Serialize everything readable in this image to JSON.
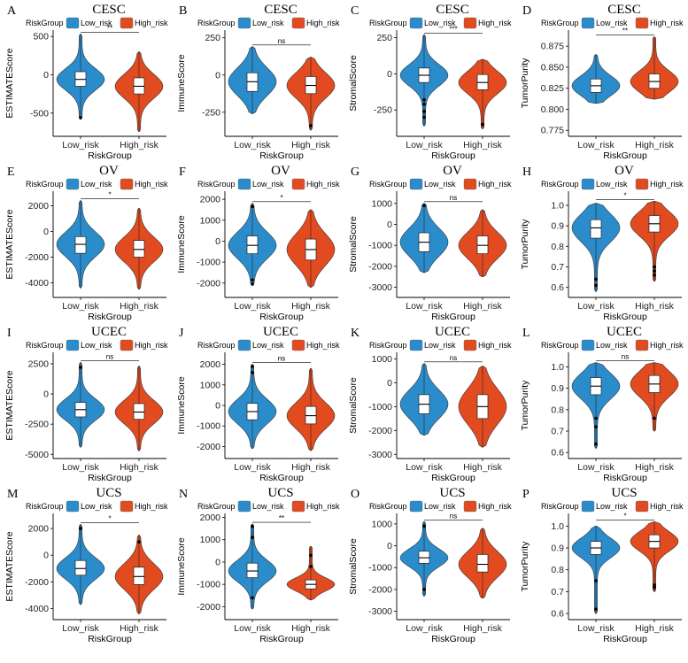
{
  "figure": {
    "legend_title": "RiskGroup",
    "group_labels": [
      "Low_risk",
      "High_risk"
    ],
    "x_axis_label": "RiskGroup"
  },
  "colors": {
    "low": "#2b8ccc",
    "high": "#e24b1f",
    "axis": "#000000"
  },
  "chart_data": [
    {
      "letter": "A",
      "title": "CESC",
      "type": "violin",
      "ylabel": "ESTIMATEScore",
      "yticks": [
        -500,
        0,
        500
      ],
      "ytick_labels": [
        "-500",
        "0",
        "500"
      ],
      "ylim": [
        -780,
        560
      ],
      "significance": "**",
      "groups": [
        {
          "name": "Low_risk",
          "min": -580,
          "max": 530,
          "q1": -150,
          "median": -60,
          "q3": 40,
          "outliers": [
            -560
          ]
        },
        {
          "name": "High_risk",
          "min": -740,
          "max": 300,
          "q1": -250,
          "median": -150,
          "q3": -40,
          "outliers": []
        }
      ]
    },
    {
      "letter": "B",
      "title": "CESC",
      "type": "violin",
      "ylabel": "ImmuneScore",
      "yticks": [
        -250,
        0,
        250
      ],
      "ytick_labels": [
        "-250",
        "0",
        "250"
      ],
      "ylim": [
        -400,
        290
      ],
      "significance": "ns",
      "groups": [
        {
          "name": "Low_risk",
          "min": -260,
          "max": 190,
          "q1": -110,
          "median": -45,
          "q3": 15,
          "outliers": []
        },
        {
          "name": "High_risk",
          "min": -370,
          "max": 120,
          "q1": -125,
          "median": -70,
          "q3": -10,
          "outliers": [
            -340
          ]
        }
      ]
    },
    {
      "letter": "C",
      "title": "CESC",
      "type": "violin",
      "ylabel": "StromalScore",
      "yticks": [
        -250,
        0,
        250
      ],
      "ytick_labels": [
        "-250",
        "0",
        "250"
      ],
      "ylim": [
        -420,
        290
      ],
      "significance": "***",
      "groups": [
        {
          "name": "Low_risk",
          "min": -360,
          "max": 270,
          "q1": -60,
          "median": -10,
          "q3": 40,
          "outliers": [
            -180,
            -210,
            -260,
            -300
          ]
        },
        {
          "name": "High_risk",
          "min": -380,
          "max": 100,
          "q1": -110,
          "median": -60,
          "q3": -5,
          "outliers": [
            -350
          ]
        }
      ]
    },
    {
      "letter": "D",
      "title": "CESC",
      "type": "violin",
      "ylabel": "TumorPurity",
      "yticks": [
        0.775,
        0.8,
        0.825,
        0.85,
        0.875
      ],
      "ytick_labels": [
        "0.775",
        "0.800",
        "0.825",
        "0.850",
        "0.875"
      ],
      "ylim": [
        0.77,
        0.892
      ],
      "significance": "**",
      "groups": [
        {
          "name": "Low_risk",
          "min": 0.807,
          "max": 0.865,
          "q1": 0.82,
          "median": 0.828,
          "q3": 0.836,
          "outliers": []
        },
        {
          "name": "High_risk",
          "min": 0.812,
          "max": 0.886,
          "q1": 0.825,
          "median": 0.833,
          "q3": 0.842,
          "outliers": []
        }
      ]
    },
    {
      "letter": "E",
      "title": "OV",
      "type": "violin",
      "ylabel": "ESTIMATEScore",
      "yticks": [
        -4000,
        -2000,
        0,
        2000
      ],
      "ytick_labels": [
        "-4000",
        "-2000",
        "0",
        "2000"
      ],
      "ylim": [
        -5000,
        3000
      ],
      "significance": "*",
      "groups": [
        {
          "name": "Low_risk",
          "min": -4400,
          "max": 2400,
          "q1": -1700,
          "median": -1000,
          "q3": -400,
          "outliers": []
        },
        {
          "name": "High_risk",
          "min": -4500,
          "max": 1800,
          "q1": -2000,
          "median": -1400,
          "q3": -700,
          "outliers": []
        }
      ]
    },
    {
      "letter": "F",
      "title": "OV",
      "type": "violin",
      "ylabel": "ImmuneScore",
      "yticks": [
        -2000,
        -1000,
        0,
        1000,
        2000
      ],
      "ytick_labels": [
        "-2000",
        "-1000",
        "0",
        "1000",
        "2000"
      ],
      "ylim": [
        -2600,
        2300
      ],
      "significance": "*",
      "groups": [
        {
          "name": "Low_risk",
          "min": -2100,
          "max": 1800,
          "q1": -600,
          "median": -200,
          "q3": 250,
          "outliers": [
            1650,
            -1850,
            -2050
          ]
        },
        {
          "name": "High_risk",
          "min": -2200,
          "max": 1500,
          "q1": -900,
          "median": -400,
          "q3": 100,
          "outliers": []
        }
      ]
    },
    {
      "letter": "G",
      "title": "OV",
      "type": "violin",
      "ylabel": "StromalScore",
      "yticks": [
        -3000,
        -2000,
        -1000,
        0,
        1000
      ],
      "ytick_labels": [
        "-3000",
        "-2000",
        "-1000",
        "0",
        "1000"
      ],
      "ylim": [
        -3400,
        1500
      ],
      "significance": "ns",
      "groups": [
        {
          "name": "Low_risk",
          "min": -2300,
          "max": 1000,
          "q1": -1300,
          "median": -850,
          "q3": -400,
          "outliers": [
            900
          ]
        },
        {
          "name": "High_risk",
          "min": -2500,
          "max": 700,
          "q1": -1400,
          "median": -1000,
          "q3": -550,
          "outliers": []
        }
      ]
    },
    {
      "letter": "H",
      "title": "OV",
      "type": "violin",
      "ylabel": "TumorPurity",
      "yticks": [
        0.6,
        0.7,
        0.8,
        0.9,
        1.0
      ],
      "ytick_labels": [
        "0.6",
        "0.7",
        "0.8",
        "0.9",
        "1.0"
      ],
      "ylim": [
        0.56,
        1.06
      ],
      "significance": "*",
      "groups": [
        {
          "name": "Low_risk",
          "min": 0.58,
          "max": 1.01,
          "q1": 0.84,
          "median": 0.89,
          "q3": 0.93,
          "outliers": [
            0.64,
            0.61
          ]
        },
        {
          "name": "High_risk",
          "min": 0.63,
          "max": 1.02,
          "q1": 0.87,
          "median": 0.91,
          "q3": 0.95,
          "outliers": [
            0.7,
            0.68,
            0.66
          ]
        }
      ]
    },
    {
      "letter": "I",
      "title": "UCEC",
      "type": "violin",
      "ylabel": "ESTIMATEScore",
      "yticks": [
        -5000,
        -2500,
        0,
        2500
      ],
      "ytick_labels": [
        "-5000",
        "-2500",
        "0",
        "2500"
      ],
      "ylim": [
        -5200,
        3300
      ],
      "significance": "ns",
      "groups": [
        {
          "name": "Low_risk",
          "min": -4400,
          "max": 2600,
          "q1": -1900,
          "median": -1300,
          "q3": -700,
          "outliers": [
            2200
          ]
        },
        {
          "name": "High_risk",
          "min": -4700,
          "max": 2300,
          "q1": -2100,
          "median": -1500,
          "q3": -800,
          "outliers": []
        }
      ]
    },
    {
      "letter": "J",
      "title": "UCEC",
      "type": "violin",
      "ylabel": "ImmuneScore",
      "yticks": [
        -2000,
        -1000,
        0,
        1000,
        2000
      ],
      "ytick_labels": [
        "-2000",
        "-1000",
        "0",
        "1000",
        "2000"
      ],
      "ylim": [
        -2500,
        2500
      ],
      "significance": "ns",
      "groups": [
        {
          "name": "Low_risk",
          "min": -2100,
          "max": 2000,
          "q1": -700,
          "median": -300,
          "q3": 100,
          "outliers": [
            1600,
            1900
          ]
        },
        {
          "name": "High_risk",
          "min": -2200,
          "max": 1800,
          "q1": -900,
          "median": -500,
          "q3": -50,
          "outliers": []
        }
      ]
    },
    {
      "letter": "K",
      "title": "UCEC",
      "type": "violin",
      "ylabel": "StromalScore",
      "yticks": [
        -3000,
        -2000,
        -1000,
        0,
        1000
      ],
      "ytick_labels": [
        "-3000",
        "-2000",
        "-1000",
        "0",
        "1000"
      ],
      "ylim": [
        -3100,
        1200
      ],
      "significance": "ns",
      "groups": [
        {
          "name": "Low_risk",
          "min": -2200,
          "max": 800,
          "q1": -1300,
          "median": -900,
          "q3": -500,
          "outliers": []
        },
        {
          "name": "High_risk",
          "min": -2700,
          "max": 700,
          "q1": -1500,
          "median": -1000,
          "q3": -500,
          "outliers": []
        }
      ]
    },
    {
      "letter": "L",
      "title": "UCEC",
      "type": "violin",
      "ylabel": "TumorPurity",
      "yticks": [
        0.6,
        0.7,
        0.8,
        0.9,
        1.0
      ],
      "ytick_labels": [
        "0.6",
        "0.7",
        "0.8",
        "0.9",
        "1.0"
      ],
      "ylim": [
        0.58,
        1.06
      ],
      "significance": "ns",
      "groups": [
        {
          "name": "Low_risk",
          "min": 0.62,
          "max": 1.02,
          "q1": 0.87,
          "median": 0.91,
          "q3": 0.95,
          "outliers": [
            0.76,
            0.72,
            0.64
          ]
        },
        {
          "name": "High_risk",
          "min": 0.7,
          "max": 1.02,
          "q1": 0.88,
          "median": 0.92,
          "q3": 0.96,
          "outliers": [
            0.76
          ]
        }
      ]
    },
    {
      "letter": "M",
      "title": "UCS",
      "type": "violin",
      "ylabel": "ESTIMATEScore",
      "yticks": [
        -4000,
        -2000,
        0,
        2000
      ],
      "ytick_labels": [
        "-4000",
        "-2000",
        "0",
        "2000"
      ],
      "ylim": [
        -4700,
        3000
      ],
      "significance": "*",
      "groups": [
        {
          "name": "Low_risk",
          "min": -3700,
          "max": 2300,
          "q1": -1500,
          "median": -1000,
          "q3": -400,
          "outliers": [
            2000
          ]
        },
        {
          "name": "High_risk",
          "min": -4400,
          "max": 1500,
          "q1": -2200,
          "median": -1600,
          "q3": -900,
          "outliers": [
            1000
          ]
        }
      ]
    },
    {
      "letter": "N",
      "title": "UCS",
      "type": "violin",
      "ylabel": "ImmuneScore",
      "yticks": [
        -2000,
        -1000,
        0,
        1000,
        2000
      ],
      "ytick_labels": [
        "-2000",
        "-1000",
        "0",
        "1000",
        "2000"
      ],
      "ylim": [
        -2500,
        2100
      ],
      "significance": "**",
      "groups": [
        {
          "name": "Low_risk",
          "min": -2100,
          "max": 1700,
          "q1": -700,
          "median": -400,
          "q3": -50,
          "outliers": [
            1600,
            1100,
            -1600
          ]
        },
        {
          "name": "High_risk",
          "min": -1700,
          "max": 700,
          "q1": -1200,
          "median": -1000,
          "q3": -800,
          "outliers": [
            300,
            -200
          ]
        }
      ]
    },
    {
      "letter": "O",
      "title": "UCS",
      "type": "violin",
      "ylabel": "StromalScore",
      "yticks": [
        -3000,
        -2000,
        -1000,
        0,
        1000
      ],
      "ytick_labels": [
        "-3000",
        "-2000",
        "-1000",
        "0",
        "1000"
      ],
      "ylim": [
        -3300,
        1400
      ],
      "significance": "ns",
      "groups": [
        {
          "name": "Low_risk",
          "min": -2300,
          "max": 1100,
          "q1": -800,
          "median": -550,
          "q3": -250,
          "outliers": [
            900,
            -2000
          ]
        },
        {
          "name": "High_risk",
          "min": -2400,
          "max": 800,
          "q1": -1200,
          "median": -850,
          "q3": -400,
          "outliers": []
        }
      ]
    },
    {
      "letter": "P",
      "title": "UCS",
      "type": "violin",
      "ylabel": "TumorPurity",
      "yticks": [
        0.6,
        0.7,
        0.8,
        0.9,
        1.0
      ],
      "ytick_labels": [
        "0.6",
        "0.7",
        "0.8",
        "0.9",
        "1.0"
      ],
      "ylim": [
        0.58,
        1.05
      ],
      "significance": "*",
      "groups": [
        {
          "name": "Low_risk",
          "min": 0.6,
          "max": 1.0,
          "q1": 0.87,
          "median": 0.9,
          "q3": 0.93,
          "outliers": [
            0.75,
            0.62
          ]
        },
        {
          "name": "High_risk",
          "min": 0.7,
          "max": 1.02,
          "q1": 0.9,
          "median": 0.93,
          "q3": 0.96,
          "outliers": [
            0.73,
            0.72
          ]
        }
      ]
    }
  ]
}
